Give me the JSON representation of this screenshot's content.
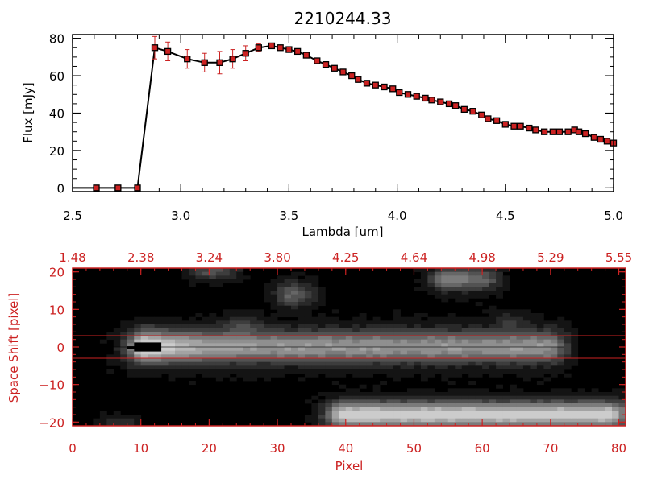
{
  "chart_data": [
    {
      "type": "line",
      "title": "2210244.33",
      "xlabel": "Lambda [um]",
      "ylabel": "Flux [mJy]",
      "xlim": [
        2.5,
        5.0
      ],
      "ylim": [
        -2,
        82
      ],
      "x_ticks": [
        2.5,
        3.0,
        3.5,
        4.0,
        4.5,
        5.0
      ],
      "x_tick_labels": [
        "2.5",
        "3.0",
        "3.5",
        "4.0",
        "4.5",
        "5.0"
      ],
      "y_ticks": [
        0,
        20,
        40,
        60,
        80
      ],
      "y_tick_labels": [
        "0",
        "20",
        "40",
        "60",
        "80"
      ],
      "line_color": "#000000",
      "marker_color": "#cc2222",
      "errorbar_color": "#cc2222",
      "series": [
        {
          "name": "flux",
          "x": [
            2.5,
            2.61,
            2.71,
            2.8,
            2.88,
            2.94,
            3.03,
            3.11,
            3.18,
            3.24,
            3.3,
            3.36,
            3.42,
            3.46,
            3.5,
            3.54,
            3.58,
            3.63,
            3.67,
            3.71,
            3.75,
            3.79,
            3.82,
            3.86,
            3.9,
            3.94,
            3.98,
            4.01,
            4.05,
            4.09,
            4.13,
            4.16,
            4.2,
            4.24,
            4.27,
            4.31,
            4.35,
            4.39,
            4.42,
            4.46,
            4.5,
            4.54,
            4.57,
            4.61,
            4.64,
            4.68,
            4.72,
            4.75,
            4.79,
            4.82,
            4.84,
            4.87,
            4.91,
            4.94,
            4.97,
            5.0
          ],
          "y": [
            0,
            0,
            0,
            0,
            75,
            73,
            69,
            67,
            67,
            69,
            72,
            75,
            76,
            75,
            74,
            73,
            71,
            68,
            66,
            64,
            62,
            60,
            58,
            56,
            55,
            54,
            53,
            51,
            50,
            49,
            48,
            47,
            46,
            45,
            44,
            42,
            41,
            39,
            37,
            36,
            34,
            33,
            33,
            32,
            31,
            30,
            30,
            30,
            30,
            31,
            30,
            29,
            27,
            26,
            25,
            24
          ],
          "error": [
            0,
            0,
            0,
            0,
            6,
            5,
            5,
            5,
            6,
            5,
            4,
            2,
            1,
            1,
            1,
            1,
            1,
            1,
            1,
            1,
            1,
            1,
            1,
            1,
            1,
            1,
            1,
            1,
            1,
            1,
            1,
            1,
            1,
            1,
            1,
            1,
            1,
            1,
            1,
            1,
            1,
            1,
            1,
            1,
            1,
            1,
            1,
            1,
            1,
            1,
            1,
            1,
            1,
            1,
            1,
            1
          ]
        }
      ]
    },
    {
      "type": "heatmap",
      "title": "",
      "xlabel": "Pixel",
      "ylabel": "Space Shift [pixel]",
      "xlim": [
        0,
        81
      ],
      "ylim": [
        -21,
        21
      ],
      "x_ticks": [
        0,
        10,
        20,
        30,
        40,
        50,
        60,
        70,
        80
      ],
      "x_tick_labels": [
        "0",
        "10",
        "20",
        "30",
        "40",
        "50",
        "60",
        "70",
        "80"
      ],
      "y_ticks": [
        -20,
        -10,
        0,
        10,
        20
      ],
      "y_tick_labels": [
        "−20",
        "−10",
        "0",
        "10",
        "20"
      ],
      "top_axis_ticks": [
        0,
        10,
        20,
        30,
        40,
        50,
        60,
        70,
        80
      ],
      "top_axis_labels": [
        "1.48",
        "2.38",
        "3.24",
        "3.80",
        "4.25",
        "4.64",
        "4.98",
        "5.29",
        "5.55"
      ],
      "extraction_window": [
        -3,
        3
      ],
      "trace_row": 0,
      "axis_color": "#cc2222",
      "colormap": "grayscale",
      "sources": [
        {
          "name": "main-trace",
          "x0": 0,
          "x1": 72,
          "y": 0,
          "peak_x": 11,
          "peak": 1.0,
          "tail": 0.6,
          "width": 3.0
        },
        {
          "name": "lower-trace",
          "x0": 35,
          "x1": 81,
          "y": -18,
          "peak_x": 40,
          "peak": 0.85,
          "tail": 0.82,
          "width": 2.4
        },
        {
          "name": "upper-blob-1",
          "x0": 29,
          "x1": 35,
          "y": 14,
          "peak_x": 32,
          "peak": 0.38,
          "tail": 0.3,
          "width": 2.2
        },
        {
          "name": "upper-blob-2",
          "x0": 51,
          "x1": 62,
          "y": 18,
          "peak_x": 55,
          "peak": 0.5,
          "tail": 0.4,
          "width": 2.0
        },
        {
          "name": "upper-blob-3",
          "x0": 16,
          "x1": 24,
          "y": 20,
          "peak_x": 20,
          "peak": 0.3,
          "tail": 0.25,
          "width": 1.5
        },
        {
          "name": "faint-blob",
          "x0": 22,
          "x1": 27,
          "y": 6,
          "peak_x": 24,
          "peak": 0.18,
          "tail": 0.15,
          "width": 2.0
        },
        {
          "name": "faint-blob-2",
          "x0": 61,
          "x1": 67,
          "y": 7,
          "peak_x": 64,
          "peak": 0.15,
          "tail": 0.12,
          "width": 1.5
        },
        {
          "name": "bottom-left-blob",
          "x0": 4,
          "x1": 9,
          "y": -20,
          "peak_x": 6,
          "peak": 0.2,
          "tail": 0.15,
          "width": 1.2
        }
      ],
      "saturated_blob": {
        "x0": 9,
        "x1": 13,
        "y": 0
      }
    }
  ]
}
